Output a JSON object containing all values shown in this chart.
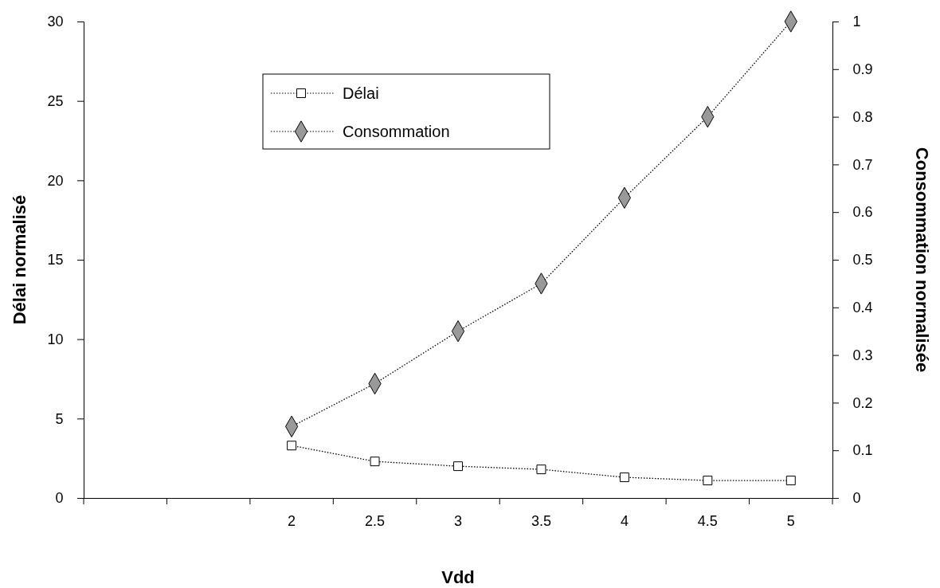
{
  "chart_data": {
    "type": "line",
    "xlabel": "Vdd",
    "ylabel": "Délai normalisé",
    "y2label": "Consommation normalisée",
    "categories": [
      null,
      null,
      "2",
      "2.5",
      "3",
      "3.5",
      "4",
      "4.5",
      "5"
    ],
    "series": [
      {
        "name": "Délai",
        "color": "#ffffff",
        "marker": "square",
        "values": [
          null,
          null,
          3.3,
          2.3,
          2.0,
          1.8,
          1.3,
          1.1,
          1.1
        ]
      },
      {
        "name": "Consommation",
        "color": "#999999",
        "marker": "diamond",
        "axis": "y2",
        "values": [
          null,
          null,
          0.15,
          0.24,
          0.35,
          0.45,
          0.63,
          0.8,
          1.0
        ]
      }
    ],
    "ylim": [
      0,
      30
    ],
    "yticks": [
      0,
      5,
      10,
      15,
      20,
      25,
      30
    ],
    "y2lim": [
      0,
      1
    ],
    "y2ticks": [
      0,
      0.1,
      0.2,
      0.3,
      0.4,
      0.5,
      0.6,
      0.7,
      0.8,
      0.9,
      1
    ],
    "line_style": "dotted",
    "legend": "top",
    "grid": false
  }
}
